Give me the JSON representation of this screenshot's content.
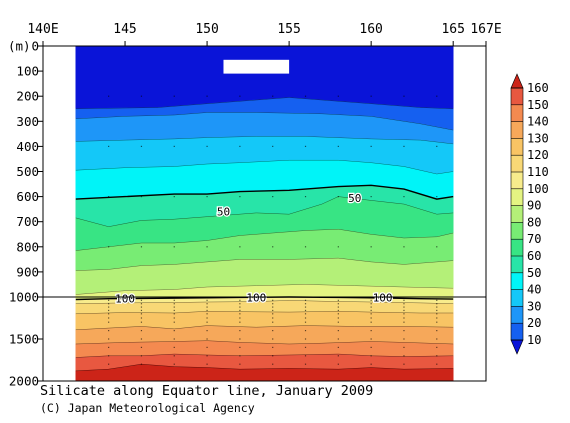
{
  "chart_data": {
    "type": "heatmap",
    "title": "Silicate along Equator line, January 2009",
    "credit": "(C) Japan Meteorological Agency",
    "x_ticks": [
      "140E",
      "145",
      "150",
      "155",
      "160",
      "165",
      "167E"
    ],
    "x_tick_values": [
      140,
      145,
      150,
      155,
      160,
      165,
      167
    ],
    "y_unit_label": "(m)",
    "y_ticks_upper": [
      "0",
      "100",
      "200",
      "300",
      "400",
      "500",
      "600",
      "700",
      "800",
      "900",
      "1000"
    ],
    "y_ticks_lower": [
      "1500",
      "2000"
    ],
    "y_tick_values_upper": [
      0,
      100,
      200,
      300,
      400,
      500,
      600,
      700,
      800,
      900,
      1000
    ],
    "y_tick_values_lower": [
      1500,
      2000
    ],
    "x_range": [
      140,
      167
    ],
    "y_range": [
      0,
      2000
    ],
    "y_scale_break": 1000,
    "data_extent_x": [
      142,
      165
    ],
    "colorbar": {
      "labels": [
        "160",
        "150",
        "140",
        "130",
        "120",
        "110",
        "100",
        "90",
        "80",
        "70",
        "60",
        "50",
        "40",
        "30",
        "20",
        "10"
      ],
      "values": [
        160,
        150,
        140,
        130,
        120,
        110,
        100,
        90,
        80,
        70,
        60,
        50,
        40,
        30,
        20,
        10
      ]
    },
    "bands": [
      {
        "level": 10,
        "color": "#0a14d8"
      },
      {
        "level": 20,
        "color": "#1560f0"
      },
      {
        "level": 30,
        "color": "#1e96f8"
      },
      {
        "level": 40,
        "color": "#14c8f8"
      },
      {
        "level": 50,
        "color": "#00f4f8"
      },
      {
        "level": 60,
        "color": "#28e4a8"
      },
      {
        "level": 70,
        "color": "#38e484"
      },
      {
        "level": 80,
        "color": "#78ec74"
      },
      {
        "level": 90,
        "color": "#b4f078"
      },
      {
        "level": 100,
        "color": "#e4f482"
      },
      {
        "level": 110,
        "color": "#f8ec8c"
      },
      {
        "level": 120,
        "color": "#f8d876"
      },
      {
        "level": 130,
        "color": "#f8c464"
      },
      {
        "level": 140,
        "color": "#f6a85a"
      },
      {
        "level": 150,
        "color": "#f48a50"
      },
      {
        "level": 160,
        "color": "#e85840"
      },
      {
        "level": 170,
        "color": "#cc2418"
      }
    ],
    "contours": [
      {
        "level": 10,
        "pts": [
          [
            142,
            250
          ],
          [
            147,
            245
          ],
          [
            150,
            230
          ],
          [
            153,
            215
          ],
          [
            155,
            205
          ],
          [
            157,
            215
          ],
          [
            160,
            230
          ],
          [
            163,
            245
          ],
          [
            165,
            250
          ]
        ]
      },
      {
        "level": 20,
        "pts": [
          [
            142,
            290
          ],
          [
            145,
            280
          ],
          [
            148,
            275
          ],
          [
            150,
            265
          ],
          [
            153,
            265
          ],
          [
            157,
            270
          ],
          [
            160,
            280
          ],
          [
            163,
            310
          ],
          [
            165,
            335
          ]
        ]
      },
      {
        "level": 30,
        "pts": [
          [
            142,
            380
          ],
          [
            145,
            375
          ],
          [
            148,
            370
          ],
          [
            150,
            365
          ],
          [
            153,
            360
          ],
          [
            156,
            360
          ],
          [
            160,
            370
          ],
          [
            163,
            375
          ],
          [
            165,
            390
          ]
        ]
      },
      {
        "level": 40,
        "pts": [
          [
            142,
            495
          ],
          [
            145,
            485
          ],
          [
            148,
            480
          ],
          [
            150,
            470
          ],
          [
            152,
            465
          ],
          [
            155,
            455
          ],
          [
            158,
            455
          ],
          [
            160,
            465
          ],
          [
            162,
            480
          ],
          [
            164,
            510
          ],
          [
            165,
            500
          ]
        ]
      },
      {
        "level": 50,
        "pts": [
          [
            142,
            610
          ],
          [
            145,
            600
          ],
          [
            148,
            590
          ],
          [
            150,
            590
          ],
          [
            152,
            580
          ],
          [
            155,
            575
          ],
          [
            158,
            560
          ],
          [
            160,
            555
          ],
          [
            162,
            570
          ],
          [
            164,
            610
          ],
          [
            165,
            600
          ]
        ]
      },
      {
        "level": 60,
        "pts": [
          [
            142,
            685
          ],
          [
            144,
            720
          ],
          [
            146,
            695
          ],
          [
            148,
            690
          ],
          [
            150,
            680
          ],
          [
            153,
            665
          ],
          [
            155,
            670
          ],
          [
            157,
            630
          ],
          [
            158,
            600
          ],
          [
            160,
            615
          ],
          [
            162,
            630
          ],
          [
            164,
            670
          ],
          [
            165,
            665
          ]
        ]
      },
      {
        "level": 70,
        "pts": [
          [
            142,
            815
          ],
          [
            144,
            800
          ],
          [
            146,
            785
          ],
          [
            148,
            785
          ],
          [
            150,
            775
          ],
          [
            152,
            755
          ],
          [
            154,
            745
          ],
          [
            156,
            735
          ],
          [
            158,
            730
          ],
          [
            160,
            750
          ],
          [
            162,
            765
          ],
          [
            164,
            760
          ],
          [
            165,
            745
          ]
        ]
      },
      {
        "level": 80,
        "pts": [
          [
            142,
            895
          ],
          [
            144,
            890
          ],
          [
            146,
            875
          ],
          [
            148,
            870
          ],
          [
            150,
            860
          ],
          [
            152,
            850
          ],
          [
            155,
            850
          ],
          [
            158,
            845
          ],
          [
            160,
            860
          ],
          [
            162,
            870
          ],
          [
            164,
            860
          ],
          [
            165,
            855
          ]
        ]
      },
      {
        "level": 90,
        "pts": [
          [
            142,
            990
          ],
          [
            145,
            975
          ],
          [
            148,
            970
          ],
          [
            150,
            960
          ],
          [
            153,
            955
          ],
          [
            156,
            950
          ],
          [
            159,
            955
          ],
          [
            162,
            960
          ],
          [
            165,
            965
          ]
        ]
      },
      {
        "level": 100,
        "pts": [
          [
            142,
            1030
          ],
          [
            144,
            1020
          ],
          [
            147,
            1015
          ],
          [
            150,
            1010
          ],
          [
            152,
            1005
          ],
          [
            155,
            1000
          ],
          [
            158,
            1005
          ],
          [
            160,
            1010
          ],
          [
            163,
            1020
          ],
          [
            165,
            1025
          ]
        ]
      },
      {
        "level": 110,
        "pts": [
          [
            142,
            1080
          ],
          [
            145,
            1070
          ],
          [
            148,
            1065
          ],
          [
            150,
            1060
          ],
          [
            153,
            1055
          ],
          [
            155,
            1040
          ],
          [
            157,
            1050
          ],
          [
            160,
            1060
          ],
          [
            163,
            1070
          ],
          [
            165,
            1080
          ]
        ]
      },
      {
        "level": 120,
        "pts": [
          [
            142,
            1200
          ],
          [
            145,
            1185
          ],
          [
            148,
            1190
          ],
          [
            150,
            1170
          ],
          [
            152,
            1175
          ],
          [
            155,
            1180
          ],
          [
            158,
            1170
          ],
          [
            160,
            1180
          ],
          [
            163,
            1190
          ],
          [
            165,
            1190
          ]
        ]
      },
      {
        "level": 130,
        "pts": [
          [
            142,
            1390
          ],
          [
            144,
            1370
          ],
          [
            146,
            1350
          ],
          [
            148,
            1380
          ],
          [
            150,
            1340
          ],
          [
            153,
            1360
          ],
          [
            156,
            1340
          ],
          [
            159,
            1350
          ],
          [
            162,
            1350
          ],
          [
            165,
            1360
          ]
        ]
      },
      {
        "level": 140,
        "pts": [
          [
            142,
            1560
          ],
          [
            145,
            1540
          ],
          [
            148,
            1530
          ],
          [
            150,
            1520
          ],
          [
            152,
            1540
          ],
          [
            155,
            1560
          ],
          [
            157,
            1550
          ],
          [
            160,
            1530
          ],
          [
            162,
            1540
          ],
          [
            165,
            1560
          ]
        ]
      },
      {
        "level": 150,
        "pts": [
          [
            142,
            1720
          ],
          [
            144,
            1700
          ],
          [
            146,
            1700
          ],
          [
            148,
            1680
          ],
          [
            150,
            1690
          ],
          [
            152,
            1700
          ],
          [
            155,
            1690
          ],
          [
            158,
            1680
          ],
          [
            160,
            1700
          ],
          [
            162,
            1710
          ],
          [
            165,
            1700
          ]
        ]
      },
      {
        "level": 160,
        "pts": [
          [
            142,
            1880
          ],
          [
            144,
            1860
          ],
          [
            146,
            1800
          ],
          [
            148,
            1830
          ],
          [
            150,
            1840
          ],
          [
            152,
            1860
          ],
          [
            155,
            1850
          ],
          [
            158,
            1860
          ],
          [
            160,
            1840
          ],
          [
            162,
            1860
          ],
          [
            165,
            1850
          ]
        ]
      },
      {
        "level": 170,
        "pts": [
          [
            142,
            2001
          ],
          [
            165,
            2001
          ]
        ]
      }
    ],
    "contour_labels": [
      {
        "text": "50",
        "x": 151,
        "y": 660
      },
      {
        "text": "50",
        "x": 159,
        "y": 605
      },
      {
        "text": "100",
        "x": 145,
        "y": 1018
      },
      {
        "text": "100",
        "x": 153,
        "y": 1008
      },
      {
        "text": "100",
        "x": 160.7,
        "y": 1008
      }
    ],
    "missing_box": {
      "x": [
        151,
        155
      ],
      "y": [
        55,
        110
      ]
    },
    "dots_x": [
      144,
      146,
      148,
      150,
      152,
      154,
      156,
      158,
      160,
      162,
      164
    ],
    "dots_y": [
      200,
      400,
      600,
      800,
      1040,
      1080,
      1120,
      1160,
      1200,
      1250,
      1300,
      1400,
      1500,
      1600,
      1700,
      1800
    ]
  }
}
